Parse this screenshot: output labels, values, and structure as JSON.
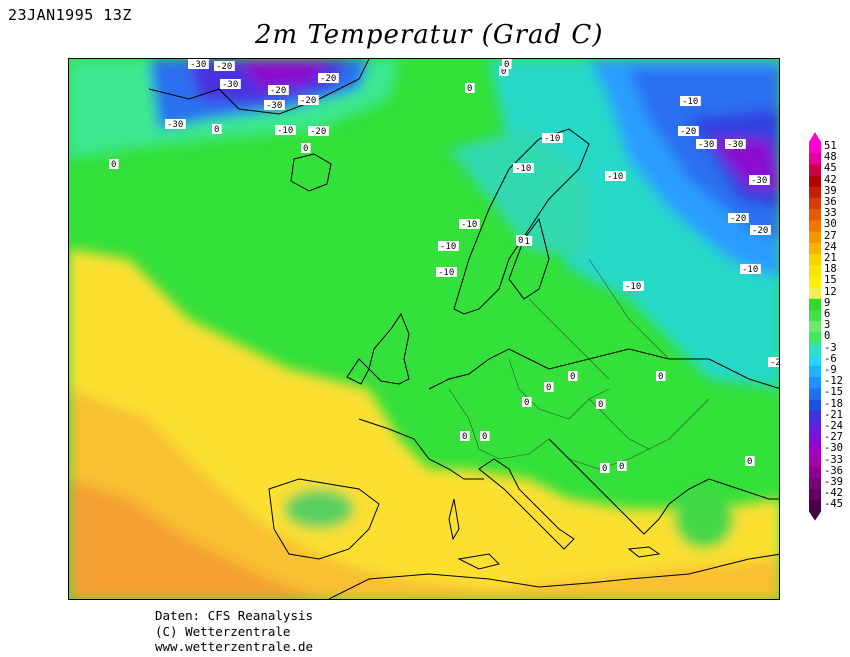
{
  "header": {
    "date": "23JAN1995 13Z",
    "title": "2m Temperatur (Grad C)"
  },
  "footer": {
    "line1": "Daten: CFS Reanalysis",
    "line2": "(C) Wetterzentrale",
    "line3": "www.wetterzentrale.de"
  },
  "legend": {
    "values": [
      "51",
      "48",
      "45",
      "42",
      "39",
      "36",
      "33",
      "30",
      "27",
      "24",
      "21",
      "18",
      "15",
      "12",
      "9",
      "6",
      "3",
      "0",
      "-3",
      "-6",
      "-9",
      "-12",
      "-15",
      "-18",
      "-21",
      "-24",
      "-27",
      "-30",
      "-33",
      "-36",
      "-39",
      "-42",
      "-45"
    ],
    "colors": [
      "#ff00d0",
      "#e8009a",
      "#c80046",
      "#b40000",
      "#c81e00",
      "#d83c00",
      "#e85a00",
      "#f07800",
      "#f59600",
      "#f8b400",
      "#fad200",
      "#fce600",
      "#fff000",
      "#f0f050",
      "#30d830",
      "#44e044",
      "#70e870",
      "#40ea60",
      "#30e0c0",
      "#28d4ff",
      "#20b4ff",
      "#2090ff",
      "#2070f0",
      "#2050e0",
      "#4030e0",
      "#6020e0",
      "#8010d8",
      "#a000c8",
      "#a800a8",
      "#900090",
      "#780078",
      "#600060",
      "#480048"
    ]
  },
  "contour_labels": [
    "-30",
    "-20",
    "-30",
    "-20",
    "-20",
    "-30",
    "-20",
    "-30",
    "-20",
    "0",
    "0",
    "-10",
    "0",
    "0",
    "0",
    "-10",
    "-10",
    "-10",
    "-10",
    "-10",
    "-10",
    "0",
    "-10",
    "-20",
    "-30",
    "-30",
    "-30",
    "-20",
    "-20",
    "-10",
    "-10",
    "-20",
    "-1",
    "0",
    "0",
    "0",
    "0",
    "0",
    "0",
    "0",
    "0",
    "0",
    "0",
    "0",
    "0",
    "0"
  ]
}
